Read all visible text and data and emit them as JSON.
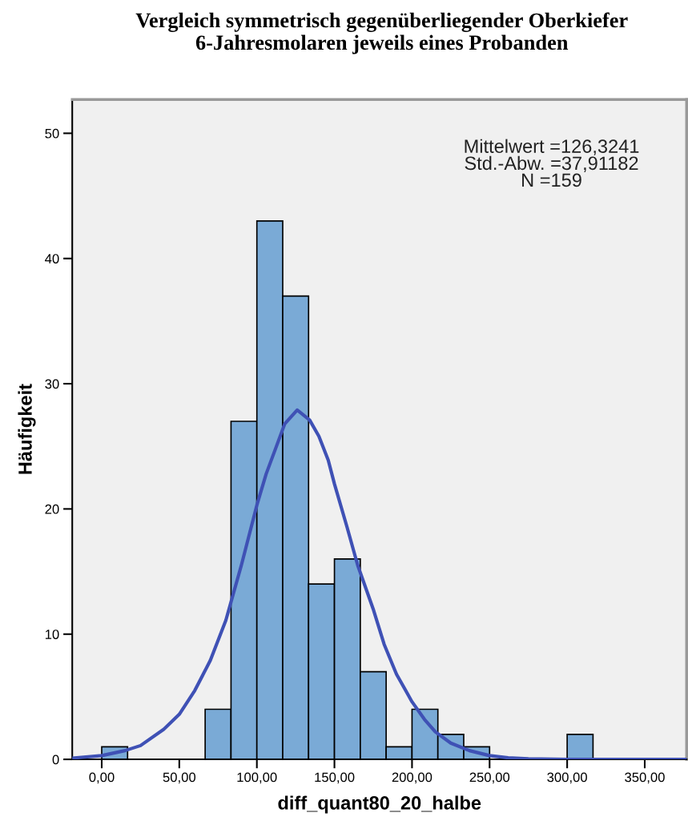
{
  "chart_data": {
    "type": "histogram",
    "title": "Vergleich symmetrisch gegenüberliegender Oberkiefer\n6-Jahresmolaren jeweils eines Probanden",
    "xlabel": "diff_quant80_20_halbe",
    "ylabel": "Häufigkeit",
    "annotations": [
      "Mittelwert =126,3241\nStd.-Abw. =37,91182\nN =159"
    ],
    "bins": [
      0,
      16.67,
      33.33,
      50,
      66.67,
      83.33,
      100,
      116.67,
      133.33,
      150,
      166.67,
      183.33,
      200,
      216.67,
      233.33,
      250,
      266.67,
      283.33,
      300,
      316.67
    ],
    "values": [
      1,
      0,
      0,
      0,
      4,
      27,
      43,
      37,
      14,
      16,
      7,
      1,
      4,
      2,
      1,
      0,
      0,
      0,
      2
    ],
    "color": "#7aaad6",
    "series": [
      {
        "type": "line",
        "color": "#3f51b5",
        "x": [
          -19,
          0,
          15,
          25,
          40,
          50,
          60,
          70,
          80,
          90,
          100,
          106,
          112,
          118,
          126,
          134,
          140,
          146,
          150,
          158,
          165,
          175,
          182,
          190,
          200,
          208,
          215,
          225,
          237,
          250,
          262,
          275,
          300,
          377
        ],
        "values": [
          0.1,
          0.3,
          0.7,
          1.1,
          2.4,
          3.6,
          5.5,
          7.9,
          11.1,
          15.5,
          20.3,
          22.8,
          24.8,
          26.8,
          27.9,
          27.1,
          25.8,
          23.9,
          22,
          18.6,
          15.5,
          12,
          9.2,
          6.8,
          4.6,
          3.2,
          2.2,
          1.3,
          0.7,
          0.3,
          0.12,
          0.05,
          0,
          0
        ]
      }
    ],
    "xlim": [
      -19,
      377
    ],
    "ylim": [
      0,
      52.7
    ],
    "xticks": [
      {
        "value": 0,
        "label": "0,00"
      },
      {
        "value": 50,
        "label": "50,00"
      },
      {
        "value": 100,
        "label": "100,00"
      },
      {
        "value": 150,
        "label": "150,00"
      },
      {
        "value": 200,
        "label": "200,00"
      },
      {
        "value": 250,
        "label": "250,00"
      },
      {
        "value": 300,
        "label": "300,00"
      },
      {
        "value": 350,
        "label": "350,00"
      }
    ],
    "yticks": [
      0,
      10,
      20,
      30,
      40,
      50
    ],
    "grid": false,
    "legend": false
  }
}
